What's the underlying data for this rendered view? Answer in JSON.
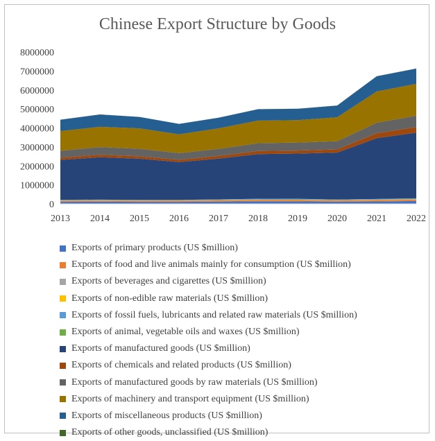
{
  "chart_data": {
    "type": "area",
    "stacked": true,
    "title": "Chinese Export Structure by Goods",
    "x": [
      "2013",
      "2014",
      "2015",
      "2016",
      "2017",
      "2018",
      "2019",
      "2020",
      "2021",
      "2022"
    ],
    "ylim": [
      0,
      8000000
    ],
    "yticks": [
      0,
      1000000,
      2000000,
      3000000,
      4000000,
      5000000,
      6000000,
      7000000,
      8000000
    ],
    "grid": false,
    "legend_position": "bottom",
    "series": [
      {
        "name": "Exports of primary products (US $million)",
        "color": "#4472C4",
        "values": [
          107000,
          112000,
          104000,
          105000,
          118000,
          135000,
          134000,
          115000,
          130000,
          150000
        ]
      },
      {
        "name": "Exports of food and live animals mainly for consumption (US $million)",
        "color": "#ED7D31",
        "values": [
          55000,
          59000,
          58000,
          61000,
          63000,
          65000,
          65000,
          64000,
          66000,
          72000
        ]
      },
      {
        "name": "Exports of beverages and cigarettes (US $million)",
        "color": "#A5A5A5",
        "values": [
          2600,
          2900,
          3300,
          3500,
          3500,
          3700,
          3500,
          2500,
          2600,
          2700
        ]
      },
      {
        "name": "Exports of non-edible raw materials (US $million)",
        "color": "#FFC000",
        "values": [
          14500,
          15800,
          13900,
          13100,
          15400,
          18000,
          17200,
          16000,
          20000,
          22000
        ]
      },
      {
        "name": "Exports of fossil fuels, lubricants and related raw materials (US $million)",
        "color": "#5B9BD5",
        "values": [
          33700,
          34500,
          27900,
          26800,
          35300,
          46800,
          46700,
          31000,
          40000,
          50000
        ]
      },
      {
        "name": "Exports of animal, vegetable oils and waxes (US $million)",
        "color": "#70AD47",
        "values": [
          600,
          600,
          700,
          500,
          600,
          700,
          900,
          1100,
          1500,
          2000
        ]
      },
      {
        "name": "Exports of manufactured goods (US $million)",
        "color": "#264478",
        "values": [
          2100000,
          2230000,
          2170000,
          1990000,
          2150000,
          2350000,
          2380000,
          2470000,
          3200000,
          3450000
        ]
      },
      {
        "name": "Exports of chemicals and related products (US $million)",
        "color": "#9E480E",
        "values": [
          120000,
          135000,
          130000,
          122000,
          141000,
          167000,
          162000,
          170000,
          262000,
          295000
        ]
      },
      {
        "name": "Exports of manufactured goods by raw materials (US $million)",
        "color": "#636363",
        "values": [
          360000,
          400000,
          390000,
          350000,
          370000,
          410000,
          420000,
          430000,
          550000,
          600000
        ]
      },
      {
        "name": "Exports of machinery and transport equipment (US $million)",
        "color": "#997300",
        "values": [
          1040000,
          1070000,
          1080000,
          990000,
          1080000,
          1190000,
          1180000,
          1260000,
          1650000,
          1680000
        ]
      },
      {
        "name": "Exports of miscellaneous products (US $million)",
        "color": "#255E91",
        "values": [
          600000,
          650000,
          600000,
          550000,
          560000,
          600000,
          600000,
          620000,
          800000,
          800000
        ]
      },
      {
        "name": "Exports of other goods, unclassified (US $million)",
        "color": "#43682B",
        "values": [
          2000,
          3000,
          3000,
          3000,
          4000,
          5000,
          5000,
          5000,
          6000,
          7000
        ]
      }
    ]
  }
}
